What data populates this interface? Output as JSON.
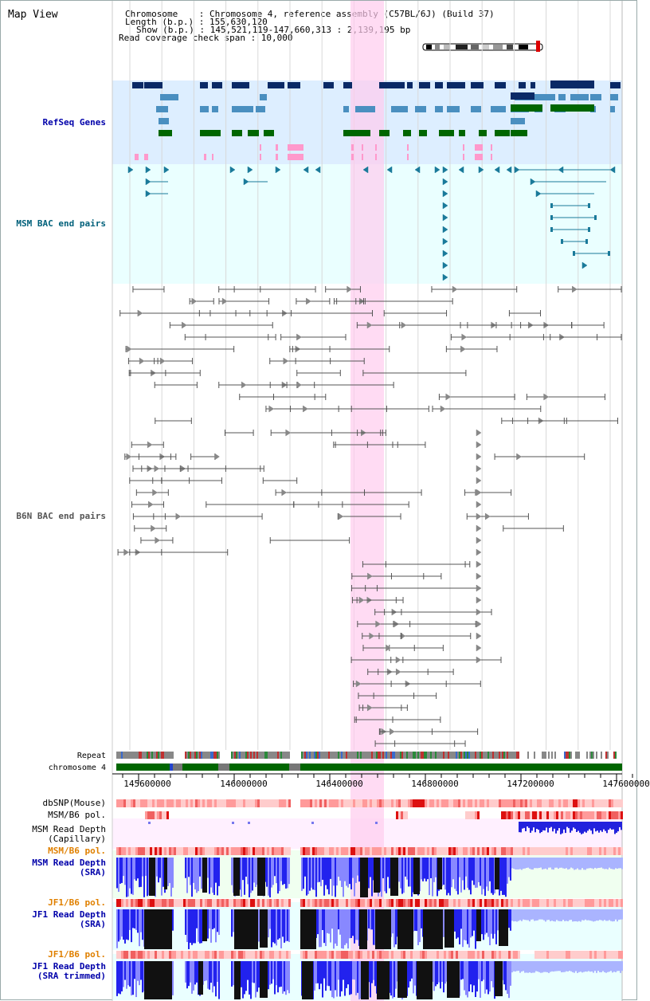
{
  "map_title": "Map View",
  "header": {
    "chromosome_line": "Chromosome    : Chromosome 4, reference assembly (C57BL/6J) (Build 37)",
    "length_line": "Length (b.p.) : 155,630,120",
    "show_line": "Show (b.p.) : 145,521,119-147,660,313 : 2,139,195 bp",
    "coverage_line": "Read coverage check span : 10,000"
  },
  "tracks": {
    "refseq": {
      "label": "RefSeq Genes",
      "color": "#0000aa"
    },
    "msm_bac": {
      "label": "MSM BAC end pairs",
      "color": "#00607a"
    },
    "b6n_bac": {
      "label": "B6N BAC end pairs",
      "color": "#555555"
    }
  },
  "rows": {
    "repeat": "Repeat",
    "chromosome": "chromosome 4",
    "dbsnp": "dbSNP(Mouse)",
    "msm_b6_pol": "MSM/B6 pol.",
    "msm_read_capillary_1": "MSM Read Depth",
    "msm_read_capillary_2": "(Capillary)",
    "msm_b6_pol_2": "MSM/B6 pol.",
    "msm_read_sra_1": "MSM Read Depth",
    "msm_read_sra_2": "(SRA)",
    "jf1_b6_pol": "JF1/B6 pol.",
    "jf1_read_sra_1": "JF1 Read Depth",
    "jf1_read_sra_2": "(SRA)",
    "jf1_b6_pol_2": "JF1/B6 pol.",
    "jf1_read_trim_1": "JF1 Read Depth",
    "jf1_read_trim_2": "(SRA trimmed)"
  },
  "axis": {
    "ticks": [
      "145600000",
      "146000000",
      "146400000",
      "146800000",
      "147200000",
      "147600000"
    ]
  },
  "colors": {
    "refseq_bg": "#ddeeff",
    "msm_bg": "#eaffff",
    "highlight": "#ffccee",
    "gene_dark": "#0a2a66",
    "gene_mid": "#4a8fc0",
    "gene_green": "#006600",
    "gene_pink": "#ff99cc",
    "msm_teal": "#1a7a9a",
    "b6n_gray": "#666666",
    "chrom_green": "#006600",
    "pol_salmon": "#ffb0b0",
    "pol_red": "#dd0000",
    "depth_blue": "#2222ee",
    "depth_light": "#8888ff",
    "depth_black": "#111111"
  }
}
